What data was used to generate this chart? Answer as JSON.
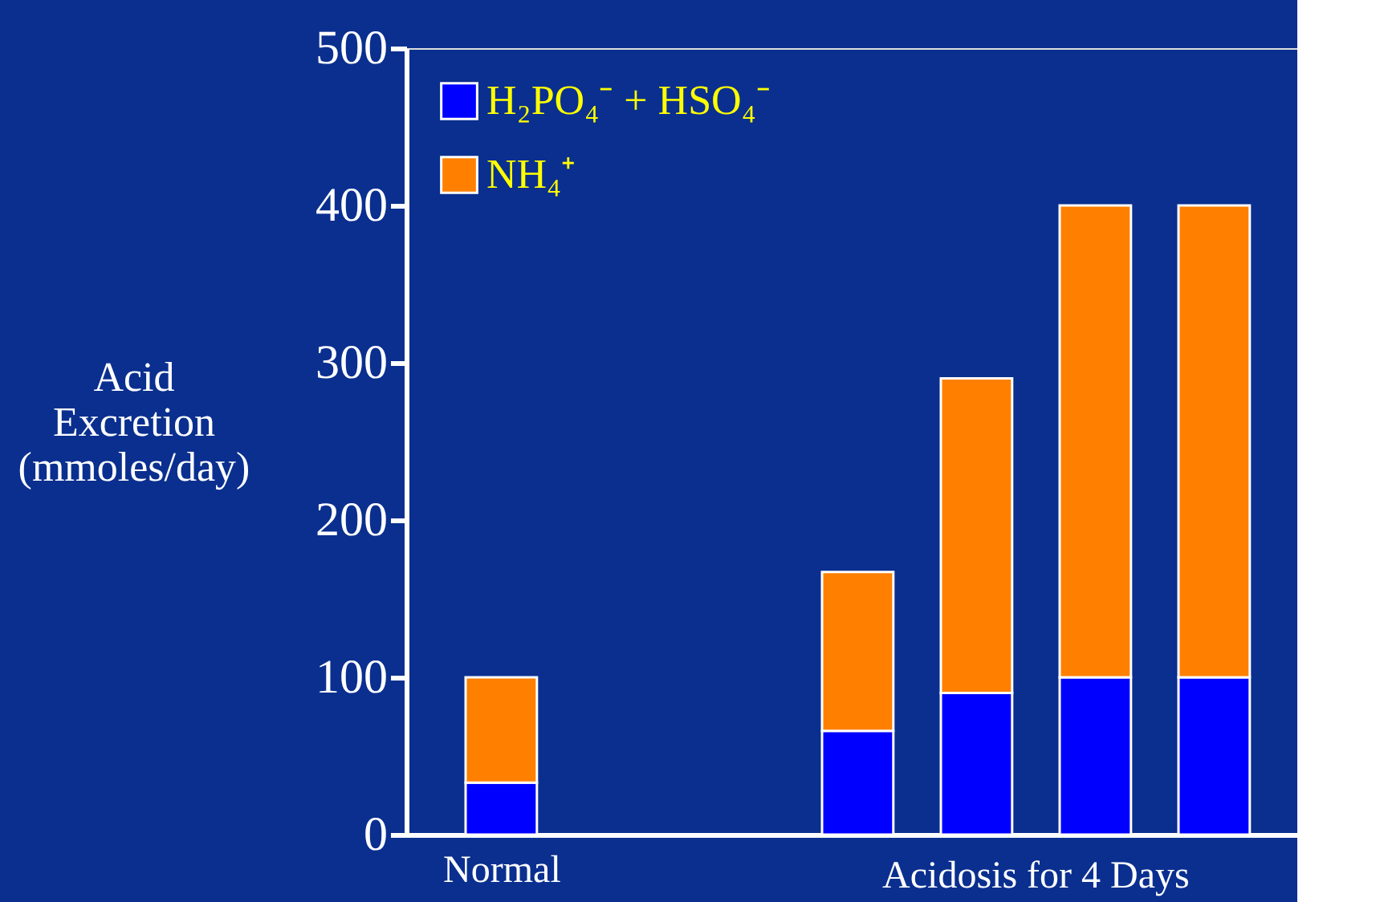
{
  "chart_data": {
    "type": "bar",
    "stacked": true,
    "categories": [
      "Normal",
      null,
      null,
      null,
      null,
      null,
      null
    ],
    "series": [
      {
        "name": "H₂PO₄⁻ + HSO₄⁻",
        "color": "#0000ff",
        "values": [
          33,
          null,
          null,
          66,
          90,
          100,
          100
        ]
      },
      {
        "name": "NH₄⁺",
        "color": "#ff8000",
        "values": [
          67,
          null,
          null,
          101,
          200,
          300,
          300
        ]
      }
    ],
    "ylabel": "Acid\nExcretion\n(mmoles/day)",
    "ylim": [
      0,
      500
    ],
    "yticks": [
      0,
      100,
      200,
      300,
      400,
      500
    ],
    "annotations": [
      "Acidosis for 4 Days"
    ],
    "grid": false,
    "legend": "top left"
  }
}
